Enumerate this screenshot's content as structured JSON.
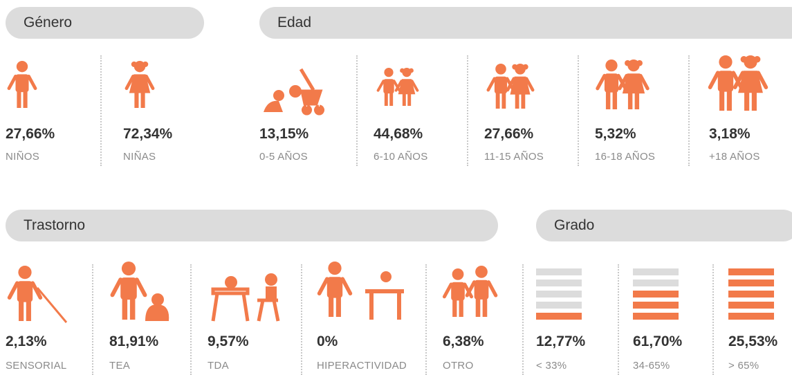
{
  "sections": [
    {
      "title": "Género",
      "items": [
        {
          "value": "27,66%",
          "label": "NIÑOS"
        },
        {
          "value": "72,34%",
          "label": "NIÑAS"
        }
      ]
    },
    {
      "title": "Edad",
      "items": [
        {
          "value": "13,15%",
          "label": "0-5 AÑOS"
        },
        {
          "value": "44,68%",
          "label": "6-10 AÑOS"
        },
        {
          "value": "27,66%",
          "label": "11-15 AÑOS"
        },
        {
          "value": "5,32%",
          "label": "16-18 AÑOS"
        },
        {
          "value": "3,18%",
          "label": "+18 AÑOS"
        }
      ]
    },
    {
      "title": "Trastorno",
      "items": [
        {
          "value": "2,13%",
          "label": "SENSORIAL"
        },
        {
          "value": "81,91%",
          "label": "TEA"
        },
        {
          "value": "9,57%",
          "label": "TDA"
        },
        {
          "value": "0%",
          "label": "HIPERACTIVIDAD"
        },
        {
          "value": "6,38%",
          "label": "OTRO"
        }
      ]
    },
    {
      "title": "Grado",
      "items": [
        {
          "value": "12,77%",
          "label": "< 33%"
        },
        {
          "value": "61,70%",
          "label": "34-65%"
        },
        {
          "value": "25,53%",
          "label": "> 65%"
        }
      ]
    }
  ]
}
